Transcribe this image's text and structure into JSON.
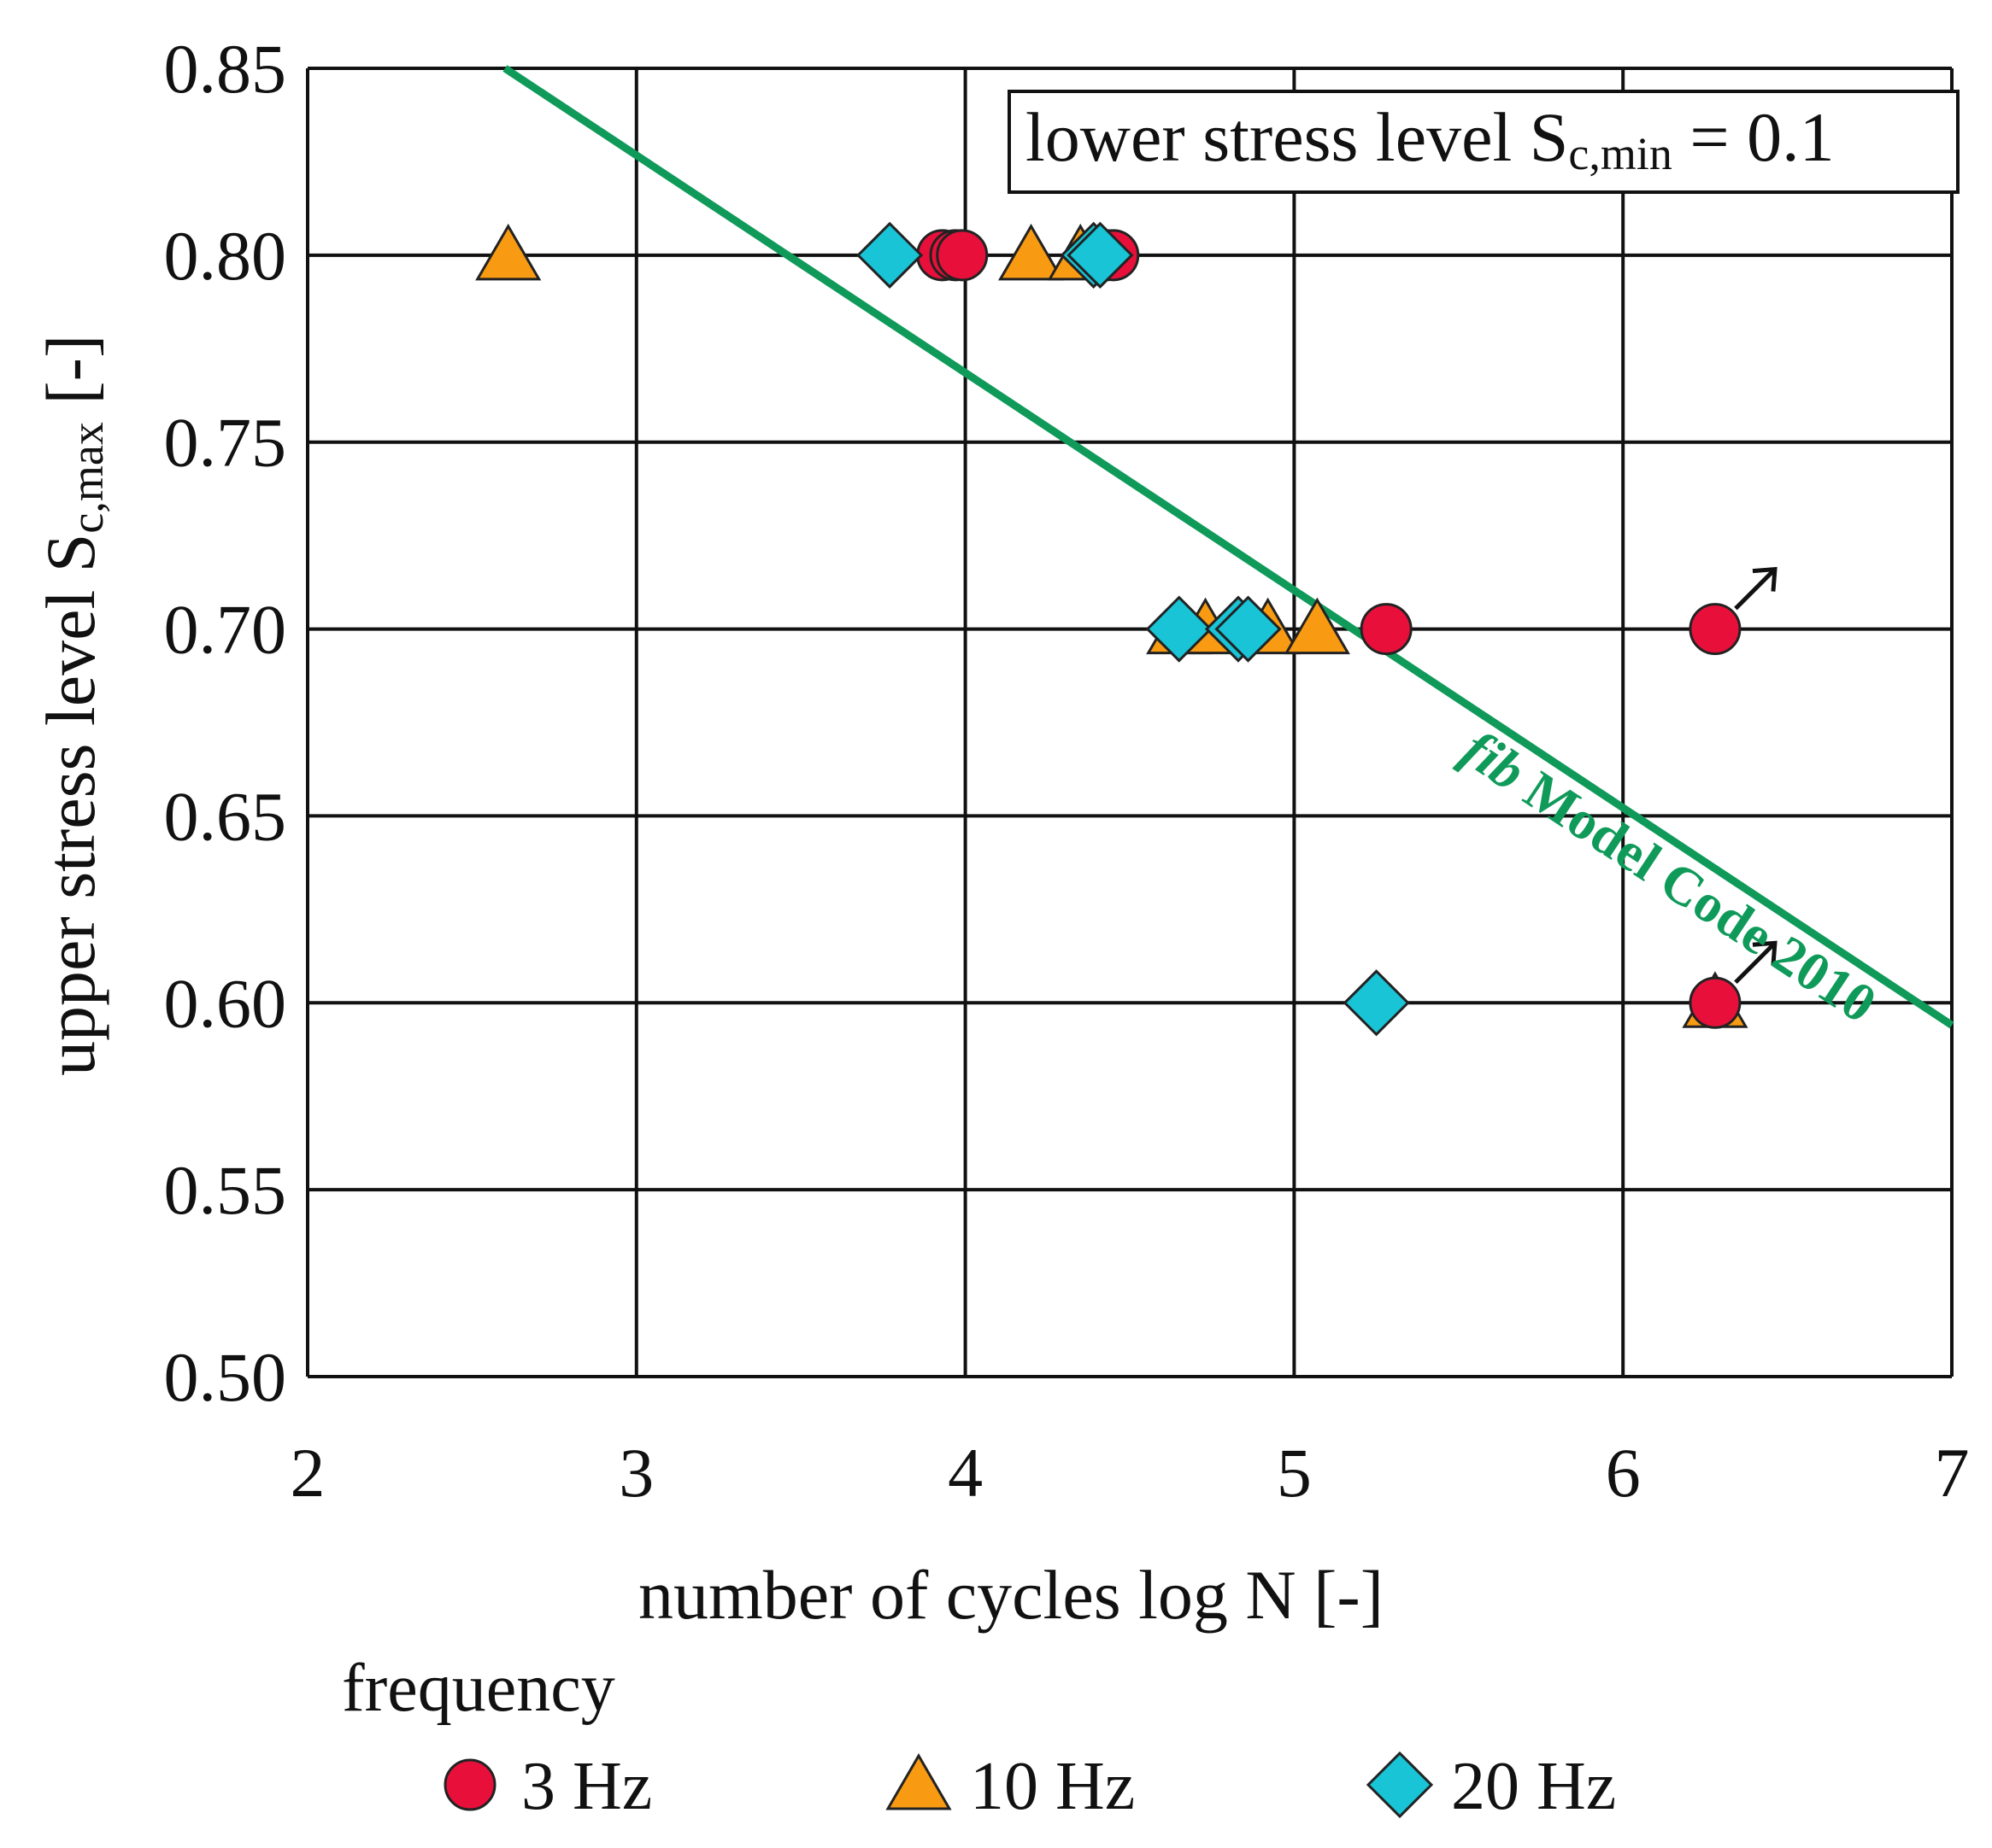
{
  "colors": {
    "s3": "#e8103a",
    "s10": "#f89b12",
    "s20": "#18c4d6",
    "curve": "#0f9a5a",
    "grid": "#111111",
    "arrow": "#111111"
  },
  "chart_data": {
    "type": "scatter",
    "xlabel": "number of cycles log N [-]",
    "ylabel": {
      "main": "upper stress level S",
      "sub": "c,max",
      "tail": " [-]"
    },
    "xlim": [
      2,
      7
    ],
    "ylim": [
      0.5,
      0.85
    ],
    "x_ticks": [
      "2",
      "3",
      "4",
      "5",
      "6",
      "7"
    ],
    "y_ticks": [
      "0.50",
      "0.55",
      "0.60",
      "0.65",
      "0.70",
      "0.75",
      "0.80",
      "0.85"
    ],
    "grid": true,
    "annotation": {
      "main": "lower stress level S",
      "sub": "c,min",
      "tail": " = 0.1"
    },
    "legend": {
      "title": "frequency",
      "placement": "bottom",
      "entries": [
        "3 Hz",
        "10 Hz",
        "20 Hz"
      ]
    },
    "series": [
      {
        "name": "3 Hz",
        "marker": "circle",
        "x": [
          3.93,
          3.97,
          3.99,
          4.43,
          4.45,
          5.28,
          6.28,
          6.28
        ],
        "y": [
          0.8,
          0.8,
          0.8,
          0.8,
          0.8,
          0.7,
          0.7,
          0.6
        ],
        "runout": [
          false,
          false,
          false,
          false,
          false,
          false,
          true,
          true
        ]
      },
      {
        "name": "10 Hz",
        "marker": "triangle",
        "x": [
          2.61,
          4.2,
          4.35,
          4.65,
          4.73,
          4.92,
          5.07,
          6.28
        ],
        "y": [
          0.8,
          0.8,
          0.8,
          0.7,
          0.7,
          0.7,
          0.7,
          0.6
        ]
      },
      {
        "name": "20 Hz",
        "marker": "diamond",
        "x": [
          3.77,
          4.39,
          4.41,
          4.65,
          4.83,
          4.86,
          5.25
        ],
        "y": [
          0.8,
          0.8,
          0.8,
          0.7,
          0.7,
          0.7,
          0.6
        ]
      }
    ],
    "curves": [
      {
        "name": "fib Model Code 2010",
        "label_italic": "fib",
        "label_rest": " Model Code 2010",
        "x": [
          2.6,
          7.0
        ],
        "y": [
          0.85,
          0.594
        ]
      }
    ]
  }
}
